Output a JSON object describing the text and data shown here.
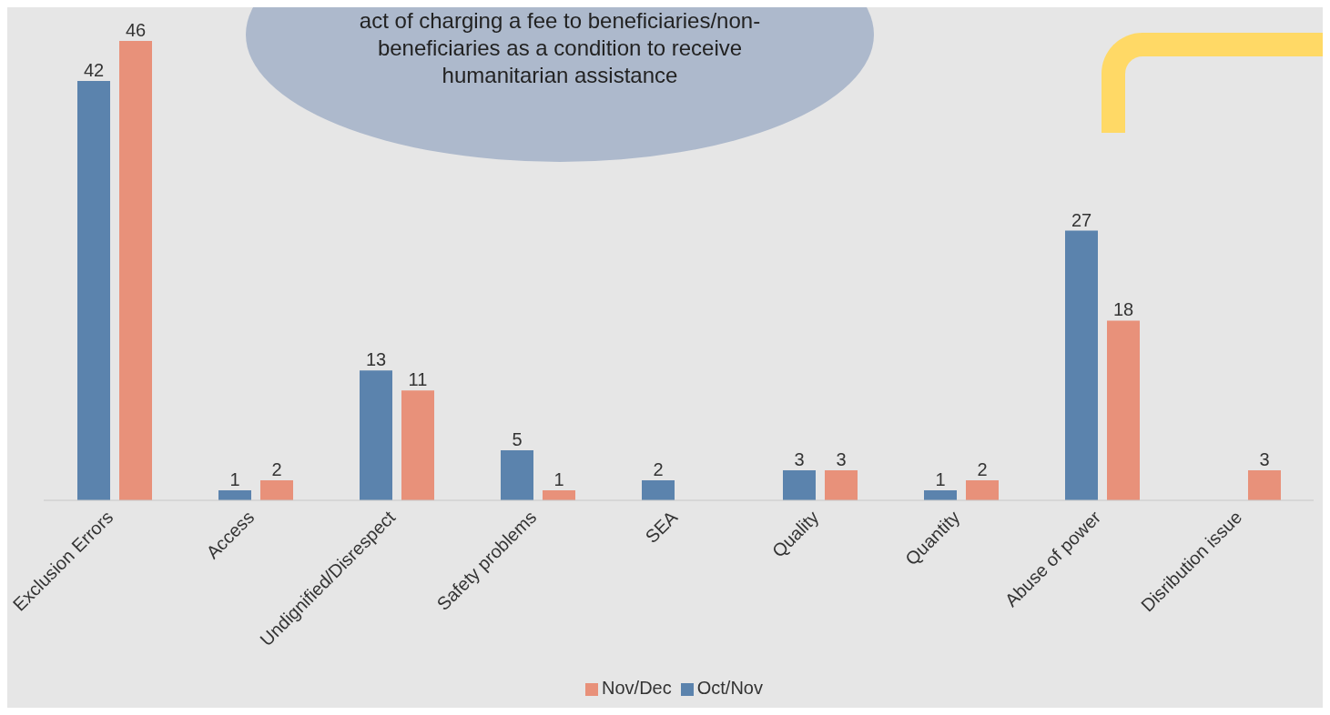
{
  "chart_data": {
    "type": "bar",
    "categories": [
      "Exclusion Errors",
      "Access",
      "Undignified/Disrespect",
      "Safety problems",
      "SEA",
      "Quality",
      "Quantity",
      "Abuse of power",
      "Disribution issue"
    ],
    "series": [
      {
        "name": "Oct/Nov",
        "color": "#5b83ad",
        "values": [
          42,
          1,
          13,
          5,
          2,
          3,
          1,
          27,
          null
        ]
      },
      {
        "name": "Nov/Dec",
        "color": "#e8917a",
        "values": [
          46,
          2,
          11,
          1,
          null,
          3,
          2,
          18,
          3
        ]
      }
    ],
    "annotations": [
      "act of charging a fee to beneficiaries/non-beneficiaries as a condition to receive humanitarian assistance"
    ],
    "data_labels": true,
    "grid": false,
    "legend": "bottom"
  }
}
